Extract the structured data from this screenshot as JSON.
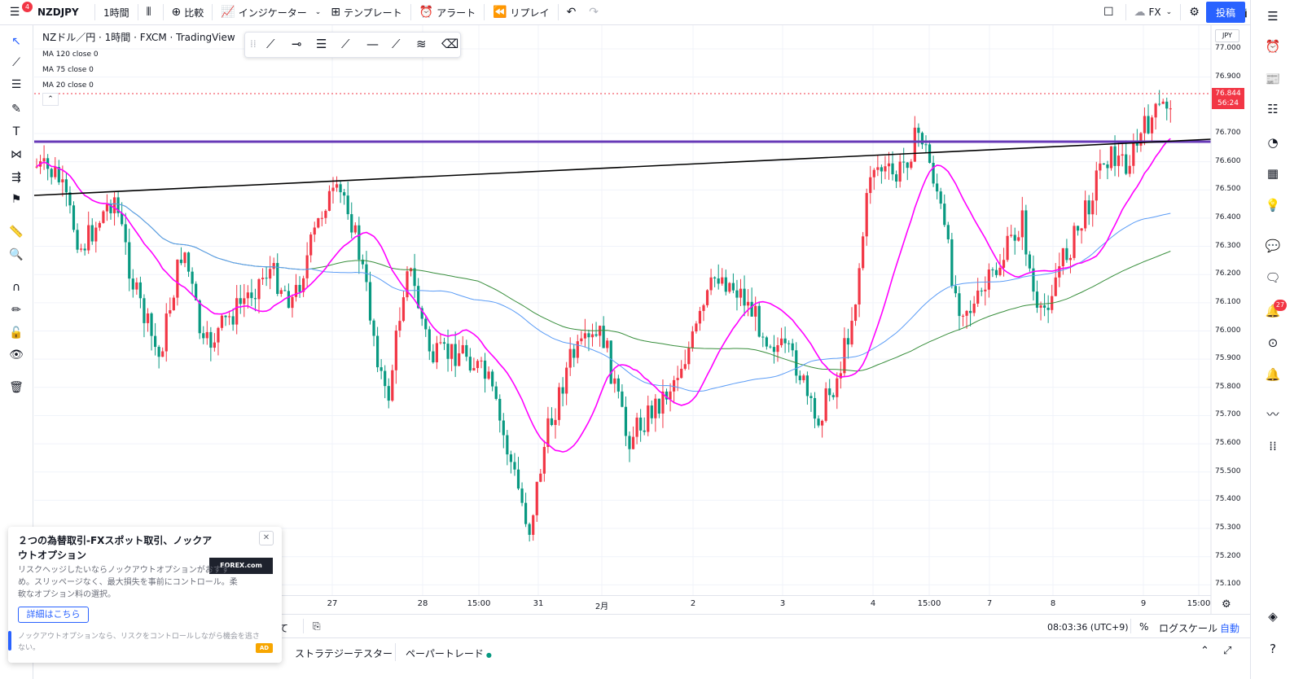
{
  "topbar": {
    "menu_badge": "4",
    "symbol": "NZDJPY",
    "interval": "1時間",
    "compare": "比較",
    "indicators": "インジケーター",
    "templates": "テンプレート",
    "alert": "アラート",
    "replay": "リプレイ",
    "layout_label": "FX",
    "publish": "投稿"
  },
  "legend": {
    "title": "NZドル／円 · 1時間 · FXCM · TradingView",
    "ma_120": "MA 120 close 0",
    "ma_75": "MA 75 close 0",
    "ma_20": "MA 20 close 0"
  },
  "price_axis": {
    "currency": "JPY",
    "labels": [
      "77.000",
      "76.900",
      "76.700",
      "76.600",
      "76.500",
      "76.400",
      "76.300",
      "76.200",
      "76.100",
      "76.000",
      "75.900",
      "75.800",
      "75.700",
      "75.600",
      "75.500",
      "75.400",
      "75.300",
      "75.200",
      "75.100"
    ],
    "last_price": "76.844",
    "countdown": "56:24"
  },
  "time_axis": {
    "labels": [
      "27",
      "28",
      "15:00",
      "31",
      "2月",
      "2",
      "3",
      "4",
      "15:00",
      "7",
      "8",
      "9",
      "15:00"
    ]
  },
  "bottom_toolbar": {
    "range_all_fragment": "て",
    "clock": "08:03:36 (UTC+9)",
    "percent": "%",
    "log_scale": "ログスケール",
    "auto": "自動"
  },
  "bottom_tabs": {
    "strategy_tester": "ストラテジーテスター",
    "paper_trading": "ペーパートレード"
  },
  "right_sidebar": {
    "alerts_badge": "27"
  },
  "ad": {
    "title": "２つの為替取引-FXスポット取引、ノックアウトオプション",
    "body": "リスクヘッジしたいならノックアウトオプションがおすすめ。スリッページなく、最大損失を事前にコントロール。柔軟なオプション料の選択。",
    "button": "詳細はこちら",
    "footer": "ノックアウトオプションなら、リスクをコントロールしながら機会を逃さない。",
    "logo": "FOREX.com",
    "tag": "AD"
  },
  "colors": {
    "up": "#f23645",
    "down": "#089981",
    "ma20": "#ff00ff",
    "ma75": "#5b9cf6",
    "ma120": "#388e3c",
    "hline": "#673ab7",
    "trendline": "#000000",
    "accent": "#2962ff"
  }
}
